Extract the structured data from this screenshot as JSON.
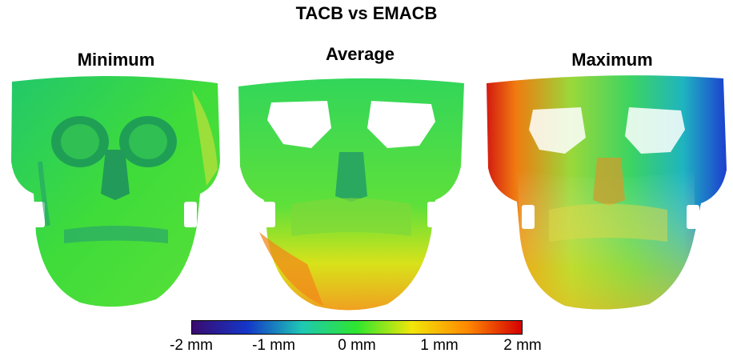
{
  "figure": {
    "title": "TACB vs EMACB"
  },
  "panels": [
    {
      "label": "Minimum"
    },
    {
      "label": "Average"
    },
    {
      "label": "Maximum"
    }
  ],
  "colorbar": {
    "ticks": [
      "-2 mm",
      "-1 mm",
      "0 mm",
      "1 mm",
      "2 mm"
    ],
    "colors": [
      "#3a0b6e",
      "#1436c8",
      "#1ec8b4",
      "#2ee62e",
      "#f2e60a",
      "#ff8a00",
      "#d40000"
    ]
  }
}
